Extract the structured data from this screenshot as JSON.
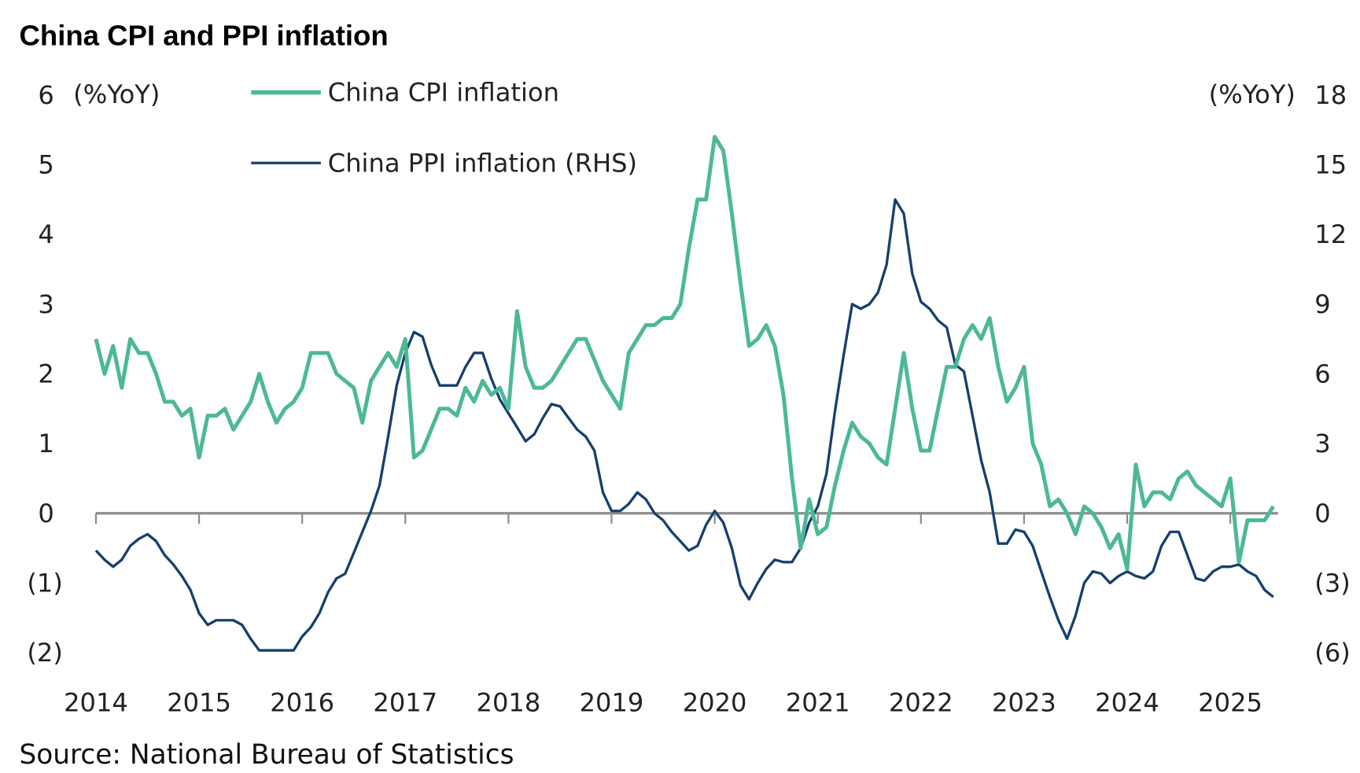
{
  "chart_data": {
    "type": "line",
    "title": "China CPI and PPI inflation",
    "source": "Source: National Bureau of Statistics",
    "left_unit": "(%YoY)",
    "right_unit": "(%YoY)",
    "left_ylim": [
      -2,
      6
    ],
    "right_ylim": [
      -6,
      18
    ],
    "left_ticks": [
      {
        "v": 6,
        "label": "6"
      },
      {
        "v": 5,
        "label": "5"
      },
      {
        "v": 4,
        "label": "4"
      },
      {
        "v": 3,
        "label": "3"
      },
      {
        "v": 2,
        "label": "2"
      },
      {
        "v": 1,
        "label": "1"
      },
      {
        "v": 0,
        "label": "0"
      },
      {
        "v": -1,
        "label": "(1)"
      },
      {
        "v": -2,
        "label": "(2)"
      }
    ],
    "right_ticks": [
      {
        "v": 18,
        "label": "18"
      },
      {
        "v": 15,
        "label": "15"
      },
      {
        "v": 12,
        "label": "12"
      },
      {
        "v": 9,
        "label": "9"
      },
      {
        "v": 6,
        "label": "6"
      },
      {
        "v": 3,
        "label": "3"
      },
      {
        "v": 0,
        "label": "0"
      },
      {
        "v": -3,
        "label": "(3)"
      },
      {
        "v": -6,
        "label": "(6)"
      }
    ],
    "x_ticks": [
      "2014",
      "2015",
      "2016",
      "2017",
      "2018",
      "2019",
      "2020",
      "2021",
      "2022",
      "2023",
      "2024",
      "2025"
    ],
    "x_start": "2014-01",
    "frequency": "monthly",
    "legend_position": "top-left",
    "colors": {
      "cpi": "#4db898",
      "ppi": "#173f6d",
      "zero": "#8c8c8c"
    },
    "series": [
      {
        "name": "China CPI inflation",
        "axis": "left",
        "values": [
          2.5,
          2.0,
          2.4,
          1.8,
          2.5,
          2.3,
          2.3,
          2.0,
          1.6,
          1.6,
          1.4,
          1.5,
          0.8,
          1.4,
          1.4,
          1.5,
          1.2,
          1.4,
          1.6,
          2.0,
          1.6,
          1.3,
          1.5,
          1.6,
          1.8,
          2.3,
          2.3,
          2.3,
          2.0,
          1.9,
          1.8,
          1.3,
          1.9,
          2.1,
          2.3,
          2.1,
          2.5,
          0.8,
          0.9,
          1.2,
          1.5,
          1.5,
          1.4,
          1.8,
          1.6,
          1.9,
          1.7,
          1.8,
          1.5,
          2.9,
          2.1,
          1.8,
          1.8,
          1.9,
          2.1,
          2.3,
          2.5,
          2.5,
          2.2,
          1.9,
          1.7,
          1.5,
          2.3,
          2.5,
          2.7,
          2.7,
          2.8,
          2.8,
          3.0,
          3.8,
          4.5,
          4.5,
          5.4,
          5.2,
          4.3,
          3.3,
          2.4,
          2.5,
          2.7,
          2.4,
          1.7,
          0.5,
          -0.5,
          0.2,
          -0.3,
          -0.2,
          0.4,
          0.9,
          1.3,
          1.1,
          1.0,
          0.8,
          0.7,
          1.5,
          2.3,
          1.5,
          0.9,
          0.9,
          1.5,
          2.1,
          2.1,
          2.5,
          2.7,
          2.5,
          2.8,
          2.1,
          1.6,
          1.8,
          2.1,
          1.0,
          0.7,
          0.1,
          0.2,
          0.0,
          -0.3,
          0.1,
          0.0,
          -0.2,
          -0.5,
          -0.3,
          -0.8,
          0.7,
          0.1,
          0.3,
          0.3,
          0.2,
          0.5,
          0.6,
          0.4,
          0.3,
          0.2,
          0.1,
          0.5,
          -0.7,
          -0.1,
          -0.1,
          -0.1,
          0.1
        ]
      },
      {
        "name": "China PPI inflation (RHS)",
        "axis": "right",
        "values": [
          -1.6,
          -2.0,
          -2.3,
          -2.0,
          -1.4,
          -1.1,
          -0.9,
          -1.2,
          -1.8,
          -2.2,
          -2.7,
          -3.3,
          -4.3,
          -4.8,
          -4.6,
          -4.6,
          -4.6,
          -4.8,
          -5.4,
          -5.9,
          -5.9,
          -5.9,
          -5.9,
          -5.9,
          -5.3,
          -4.9,
          -4.3,
          -3.4,
          -2.8,
          -2.6,
          -1.7,
          -0.8,
          0.1,
          1.2,
          3.3,
          5.5,
          6.9,
          7.8,
          7.6,
          6.4,
          5.5,
          5.5,
          5.5,
          6.3,
          6.9,
          6.9,
          5.8,
          4.9,
          4.3,
          3.7,
          3.1,
          3.4,
          4.1,
          4.7,
          4.6,
          4.1,
          3.6,
          3.3,
          2.7,
          0.9,
          0.1,
          0.1,
          0.4,
          0.9,
          0.6,
          0.0,
          -0.3,
          -0.8,
          -1.2,
          -1.6,
          -1.4,
          -0.5,
          0.1,
          -0.4,
          -1.5,
          -3.1,
          -3.7,
          -3.0,
          -2.4,
          -2.0,
          -2.1,
          -2.1,
          -1.5,
          -0.4,
          0.3,
          1.7,
          4.4,
          6.8,
          9.0,
          8.8,
          9.0,
          9.5,
          10.7,
          13.5,
          12.9,
          10.3,
          9.1,
          8.8,
          8.3,
          8.0,
          6.4,
          6.1,
          4.2,
          2.3,
          0.9,
          -1.3,
          -1.3,
          -0.7,
          -0.8,
          -1.4,
          -2.5,
          -3.6,
          -4.6,
          -5.4,
          -4.4,
          -3.0,
          -2.5,
          -2.6,
          -3.0,
          -2.7,
          -2.5,
          -2.7,
          -2.8,
          -2.5,
          -1.4,
          -0.8,
          -0.8,
          -1.8,
          -2.8,
          -2.9,
          -2.5,
          -2.3,
          -2.3,
          -2.2,
          -2.5,
          -2.7,
          -3.3,
          -3.6
        ]
      }
    ]
  }
}
